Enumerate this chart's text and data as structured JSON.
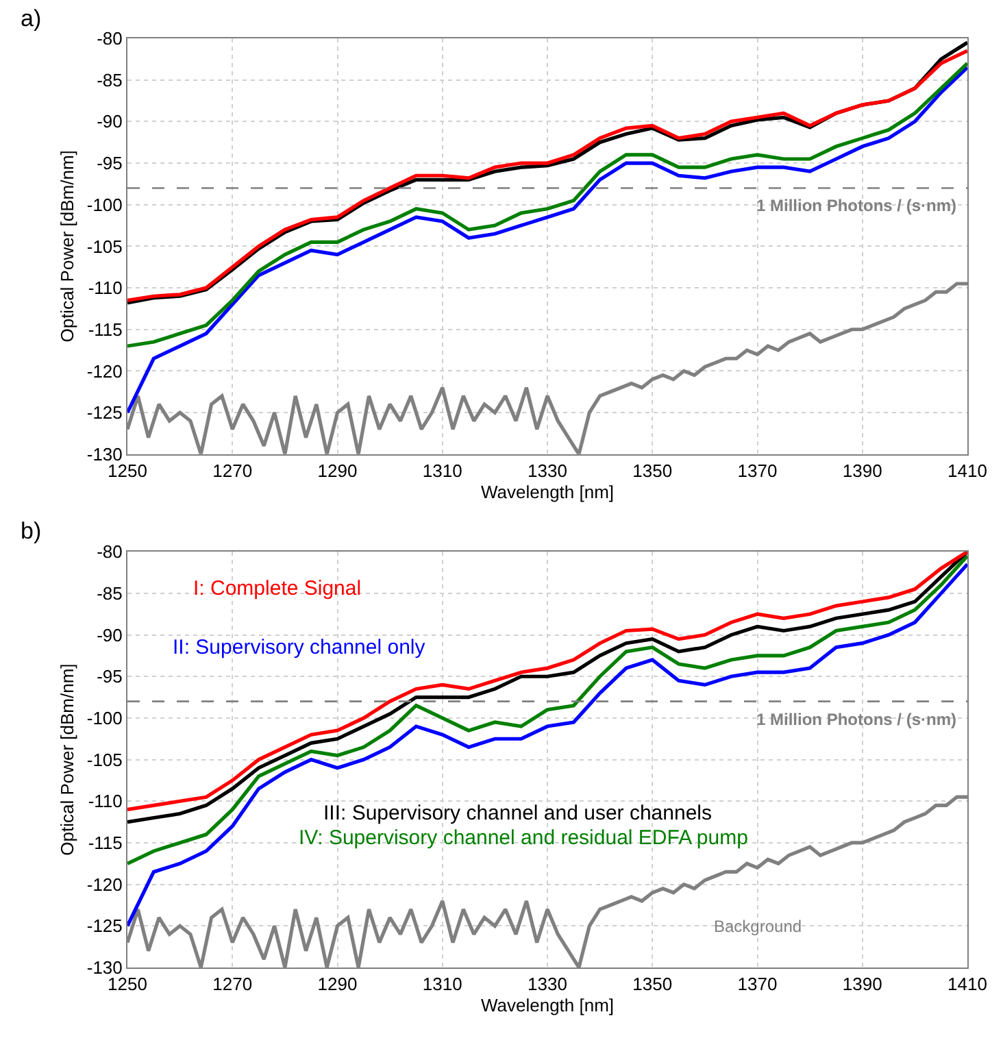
{
  "chart_data": [
    {
      "type": "line",
      "title": "a)",
      "xlabel": "Wavelength [nm]",
      "ylabel": "Optical Power [dBm/nm]",
      "xlim": [
        1250,
        1410
      ],
      "xticks": [
        1250,
        1270,
        1290,
        1310,
        1330,
        1350,
        1370,
        1390,
        1410
      ],
      "ylim": [
        -130,
        -80
      ],
      "yticks": [
        -130,
        -125,
        -120,
        -115,
        -110,
        -105,
        -100,
        -95,
        -90,
        -85,
        -80
      ],
      "grid": true,
      "legend": false,
      "line_style": "solid",
      "x": [
        1250,
        1255,
        1260,
        1265,
        1270,
        1275,
        1280,
        1285,
        1290,
        1295,
        1300,
        1305,
        1310,
        1315,
        1320,
        1325,
        1330,
        1335,
        1340,
        1345,
        1350,
        1355,
        1360,
        1365,
        1370,
        1375,
        1380,
        1385,
        1390,
        1395,
        1400,
        1405,
        1410
      ],
      "ref_lines": [
        {
          "axis": "y",
          "value": -98,
          "label": "1 Million Photons / (s·nm)",
          "color": "#808080",
          "line_style": "dashed"
        }
      ],
      "series": [
        {
          "color": "#808080",
          "x": [
            1250,
            1252,
            1254,
            1256,
            1258,
            1260,
            1262,
            1264,
            1266,
            1268,
            1270,
            1272,
            1274,
            1276,
            1278,
            1280,
            1282,
            1284,
            1286,
            1288,
            1290,
            1292,
            1294,
            1296,
            1298,
            1300,
            1302,
            1304,
            1306,
            1308,
            1310,
            1312,
            1314,
            1316,
            1318,
            1320,
            1322,
            1324,
            1326,
            1328,
            1330,
            1332,
            1334,
            1336,
            1338,
            1340,
            1342,
            1344,
            1346,
            1348,
            1350,
            1352,
            1354,
            1356,
            1358,
            1360,
            1362,
            1364,
            1366,
            1368,
            1370,
            1372,
            1374,
            1376,
            1378,
            1380,
            1382,
            1384,
            1386,
            1388,
            1390,
            1392,
            1394,
            1396,
            1398,
            1400,
            1402,
            1404,
            1406,
            1408,
            1410
          ],
          "values": [
            -127,
            -123,
            -128,
            -124,
            -126,
            -125,
            -126,
            -130,
            -124,
            -123,
            -127,
            -124,
            -126,
            -129,
            -125,
            -130,
            -123,
            -128,
            -124,
            -130,
            -125,
            -124,
            -130,
            -123,
            -127,
            -124,
            -126,
            -123,
            -127,
            -125,
            -122,
            -127,
            -123,
            -126,
            -124,
            -125,
            -123,
            -126,
            -122,
            -127,
            -123,
            -126,
            -128,
            -130,
            -125,
            -123,
            -122.5,
            -122,
            -121.5,
            -122,
            -121,
            -120.5,
            -121,
            -120,
            -120.5,
            -119.5,
            -119,
            -118.5,
            -118.5,
            -117.5,
            -118,
            -117,
            -117.5,
            -116.5,
            -116,
            -115.5,
            -116.5,
            -116,
            -115.5,
            -115,
            -115,
            -114.5,
            -114,
            -113.5,
            -112.5,
            -112,
            -111.5,
            -110.5,
            -110.5,
            -109.5,
            -109.5
          ]
        },
        {
          "color": "#0000ff",
          "values": [
            -125,
            -118.5,
            -117,
            -115.5,
            -112,
            -108.5,
            -107,
            -105.5,
            -106,
            -104.5,
            -103,
            -101.5,
            -102,
            -104,
            -103.5,
            -102.5,
            -101.5,
            -100.5,
            -97,
            -95,
            -95,
            -96.5,
            -96.8,
            -96,
            -95.5,
            -95.5,
            -96,
            -94.5,
            -93,
            -92,
            -90,
            -86.5,
            -83.5
          ]
        },
        {
          "color": "#008000",
          "values": [
            -117,
            -116.5,
            -115.5,
            -114.5,
            -111.5,
            -108,
            -106,
            -104.5,
            -104.5,
            -103,
            -102,
            -100.5,
            -101,
            -103,
            -102.5,
            -101,
            -100.5,
            -99.5,
            -96,
            -94,
            -94,
            -95.5,
            -95.5,
            -94.5,
            -94,
            -94.5,
            -94.5,
            -93,
            -92,
            -91,
            -89,
            -86,
            -83
          ]
        },
        {
          "color": "#000000",
          "values": [
            -111.8,
            -111.2,
            -111,
            -110.2,
            -107.8,
            -105.3,
            -103.3,
            -102,
            -101.8,
            -99.8,
            -98.3,
            -97,
            -97,
            -97,
            -96,
            -95.5,
            -95.3,
            -94.5,
            -92.5,
            -91.5,
            -90.8,
            -92.2,
            -92,
            -90.5,
            -89.8,
            -89.5,
            -90.7,
            -89,
            -88,
            -87.5,
            -86,
            -82.5,
            -80.5
          ]
        },
        {
          "color": "#ff0000",
          "values": [
            -111.5,
            -111,
            -110.8,
            -110,
            -107.5,
            -105,
            -103,
            -101.8,
            -101.5,
            -99.5,
            -98,
            -96.5,
            -96.5,
            -96.8,
            -95.5,
            -95,
            -95,
            -94,
            -92,
            -90.8,
            -90.5,
            -92,
            -91.5,
            -90,
            -89.5,
            -89,
            -90.5,
            -89,
            -88,
            -87.5,
            -86,
            -83,
            -81.5
          ]
        }
      ]
    },
    {
      "type": "line",
      "title": "b)",
      "xlabel": "Wavelength [nm]",
      "ylabel": "Optical Power [dBm/nm]",
      "xlim": [
        1250,
        1410
      ],
      "xticks": [
        1250,
        1270,
        1290,
        1310,
        1330,
        1350,
        1370,
        1390,
        1410
      ],
      "ylim": [
        -130,
        -80
      ],
      "yticks": [
        -130,
        -125,
        -120,
        -115,
        -110,
        -105,
        -100,
        -95,
        -90,
        -85,
        -80
      ],
      "grid": true,
      "legend": false,
      "line_style": "solid",
      "x": [
        1250,
        1255,
        1260,
        1265,
        1270,
        1275,
        1280,
        1285,
        1290,
        1295,
        1300,
        1305,
        1310,
        1315,
        1320,
        1325,
        1330,
        1335,
        1340,
        1345,
        1350,
        1355,
        1360,
        1365,
        1370,
        1375,
        1380,
        1385,
        1390,
        1395,
        1400,
        1405,
        1410
      ],
      "ref_lines": [
        {
          "axis": "y",
          "value": -98,
          "label": "1 Million Photons / (s·nm)",
          "color": "#808080",
          "line_style": "dashed"
        }
      ],
      "series": [
        {
          "name": "Background",
          "color": "#808080",
          "x": [
            1250,
            1252,
            1254,
            1256,
            1258,
            1260,
            1262,
            1264,
            1266,
            1268,
            1270,
            1272,
            1274,
            1276,
            1278,
            1280,
            1282,
            1284,
            1286,
            1288,
            1290,
            1292,
            1294,
            1296,
            1298,
            1300,
            1302,
            1304,
            1306,
            1308,
            1310,
            1312,
            1314,
            1316,
            1318,
            1320,
            1322,
            1324,
            1326,
            1328,
            1330,
            1332,
            1334,
            1336,
            1338,
            1340,
            1342,
            1344,
            1346,
            1348,
            1350,
            1352,
            1354,
            1356,
            1358,
            1360,
            1362,
            1364,
            1366,
            1368,
            1370,
            1372,
            1374,
            1376,
            1378,
            1380,
            1382,
            1384,
            1386,
            1388,
            1390,
            1392,
            1394,
            1396,
            1398,
            1400,
            1402,
            1404,
            1406,
            1408,
            1410
          ],
          "values": [
            -127,
            -123,
            -128,
            -124,
            -126,
            -125,
            -126,
            -130,
            -124,
            -123,
            -127,
            -124,
            -126,
            -129,
            -125,
            -130,
            -123,
            -128,
            -124,
            -130,
            -125,
            -124,
            -130,
            -123,
            -127,
            -124,
            -126,
            -123,
            -127,
            -125,
            -122,
            -127,
            -123,
            -126,
            -124,
            -125,
            -123,
            -126,
            -122,
            -127,
            -123,
            -126,
            -128,
            -130,
            -125,
            -123,
            -122.5,
            -122,
            -121.5,
            -122,
            -121,
            -120.5,
            -121,
            -120,
            -120.5,
            -119.5,
            -119,
            -118.5,
            -118.5,
            -117.5,
            -118,
            -117,
            -117.5,
            -116.5,
            -116,
            -115.5,
            -116.5,
            -116,
            -115.5,
            -115,
            -115,
            -114.5,
            -114,
            -113.5,
            -112.5,
            -112,
            -111.5,
            -110.5,
            -110.5,
            -109.5,
            -109.5
          ]
        },
        {
          "name": "II: Supervisory channel only",
          "color": "#0000ff",
          "values": [
            -125,
            -118.5,
            -117.5,
            -116,
            -113,
            -108.5,
            -106.5,
            -105,
            -106,
            -105,
            -103.5,
            -101,
            -102,
            -103.5,
            -102.5,
            -102.5,
            -101,
            -100.5,
            -97,
            -94,
            -93,
            -95.5,
            -96,
            -95,
            -94.5,
            -94.5,
            -94,
            -91.5,
            -91,
            -90,
            -88.5,
            -85,
            -81.5
          ]
        },
        {
          "name": "IV: Supervisory channel and residual EDFA pump",
          "color": "#008000",
          "values": [
            -117.5,
            -116,
            -115,
            -114,
            -111,
            -107,
            -105.5,
            -104,
            -104.5,
            -103.5,
            -101.5,
            -98.5,
            -100,
            -101.5,
            -100.5,
            -101,
            -99,
            -98.5,
            -95,
            -92,
            -91.5,
            -93.5,
            -94,
            -93,
            -92.5,
            -92.5,
            -91.5,
            -89.5,
            -89,
            -88.5,
            -87,
            -84,
            -80.5
          ]
        },
        {
          "name": "III: Supervisory channel and user channels",
          "color": "#000000",
          "values": [
            -112.5,
            -112,
            -111.5,
            -110.5,
            -108.5,
            -106,
            -104.5,
            -103,
            -102.5,
            -101,
            -99.5,
            -97.5,
            -97.5,
            -97.5,
            -96.5,
            -95,
            -95,
            -94.5,
            -92.5,
            -91,
            -90.5,
            -92,
            -91.5,
            -90,
            -89,
            -89.5,
            -89,
            -88,
            -87.5,
            -87,
            -86,
            -83,
            -80
          ]
        },
        {
          "name": "I: Complete Signal",
          "color": "#ff0000",
          "values": [
            -111,
            -110.5,
            -110,
            -109.5,
            -107.5,
            -105,
            -103.5,
            -102,
            -101.5,
            -100,
            -98,
            -96.5,
            -96,
            -96.5,
            -95.5,
            -94.5,
            -94,
            -93,
            -91,
            -89.5,
            -89.3,
            -90.5,
            -90,
            -88.5,
            -87.5,
            -88,
            -87.5,
            -86.5,
            -86,
            -85.5,
            -84.5,
            -82,
            -80
          ]
        }
      ]
    }
  ]
}
